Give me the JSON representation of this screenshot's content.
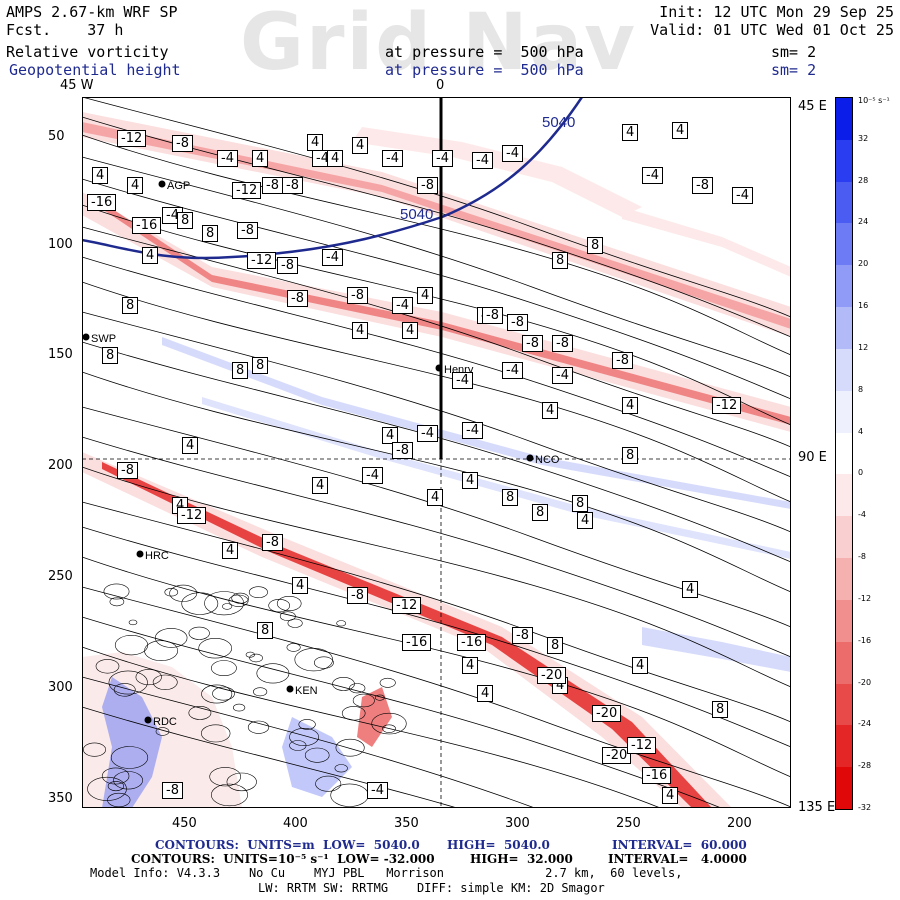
{
  "header": {
    "model": "AMPS 2.67-km WRF SP",
    "forecast": "Fcst.    37 h",
    "field1": "Relative vorticity",
    "field2": "Geopotential height",
    "pressure1": "at pressure =  500 hPa",
    "pressure2": "at pressure =  500 hPa",
    "init": "Init: 12 UTC Mon 29 Sep 25",
    "valid": "Valid: 01 UTC Wed 01 Oct 25",
    "sm1": "sm= 2",
    "sm2": "sm= 2",
    "watermark": "Grid Nav"
  },
  "axes": {
    "top_left": "45 W",
    "top_mid": "0",
    "right_top": "45 E",
    "right_mid": "90 E",
    "right_bottom": "135 E",
    "y_ticks": [
      "50",
      "100",
      "150",
      "200",
      "250",
      "300",
      "350"
    ],
    "x_ticks": [
      "450",
      "400",
      "350",
      "300",
      "250",
      "200"
    ]
  },
  "colorbar": {
    "units": "10⁻⁵ s⁻¹",
    "labels": [
      "32",
      "28",
      "24",
      "20",
      "16",
      "12",
      "8",
      "4",
      "0",
      "-4",
      "-8",
      "-12",
      "-16",
      "-20",
      "-24",
      "-28",
      "-32"
    ],
    "colors": [
      "#0b1de8",
      "#2a3df0",
      "#4a5cf2",
      "#6d7cf4",
      "#8f9bf6",
      "#b2bbf8",
      "#d6dbfb",
      "#eef0fd",
      "#ffffff",
      "#fde9e9",
      "#f9cfcf",
      "#f5b0b0",
      "#f18f8f",
      "#ec6c6c",
      "#e84949",
      "#e42626",
      "#e00808"
    ]
  },
  "stations": [
    {
      "label": "AGP"
    },
    {
      "label": "SWP"
    },
    {
      "label": "Henry"
    },
    {
      "label": "NCO"
    },
    {
      "label": "HRC"
    },
    {
      "label": "KEN"
    },
    {
      "label": "RDC"
    }
  ],
  "height_labels": [
    "5040",
    "5040"
  ],
  "footer": {
    "line1_a": "CONTOURS:  UNITS=m  LOW=  5040.0",
    "line1_b": "HIGH=  5040.0",
    "line1_c": "INTERVAL=  60.000",
    "line2_a": "CONTOURS:  UNITS=10⁻⁵ s⁻¹  LOW= -32.000",
    "line2_b": "HIGH=  32.000",
    "line2_c": "INTERVAL=   4.0000",
    "line3": "Model Info: V4.3.3    No Cu    MYJ PBL   Morrison              2.7 km,  60 levels,",
    "line4": "LW: RRTM SW: RRTMG    DIFF: simple KM: 2D Smagor"
  },
  "contour_labels": [
    "-12",
    "-8",
    "-4",
    "4",
    "4",
    "-4",
    "-4",
    "-8",
    "-4",
    "-4",
    "4",
    "4",
    "-8",
    "-12",
    "-8",
    "4",
    "4",
    "-4",
    "-4",
    "-8",
    "-4",
    "-16",
    "-16",
    "-8",
    "4",
    "4",
    "-4",
    "8",
    "8",
    "-12",
    "-8",
    "-4",
    "4",
    "-8",
    "-8",
    "-4",
    "-8",
    "4",
    "4",
    "4",
    "8",
    "8",
    "4",
    "8",
    "8",
    "-8",
    "-8",
    "-8",
    "-8",
    "-4",
    "-4",
    "-4",
    "8",
    "8",
    "4",
    "4",
    "-12",
    "-4",
    "4",
    "8",
    "4",
    "-4",
    "-8",
    "-4",
    "4",
    "4",
    "8",
    "8",
    "8",
    "4",
    "-8",
    "4",
    "-12",
    "4",
    "4",
    "-8",
    "4",
    "-8",
    "-12",
    "-16",
    "-16",
    "-8",
    "8",
    "4",
    "4",
    "4",
    "8",
    "-20",
    "-20",
    "-20",
    "-12",
    "-16",
    "4",
    "4",
    "8",
    "4",
    "-4",
    "-8"
  ]
}
